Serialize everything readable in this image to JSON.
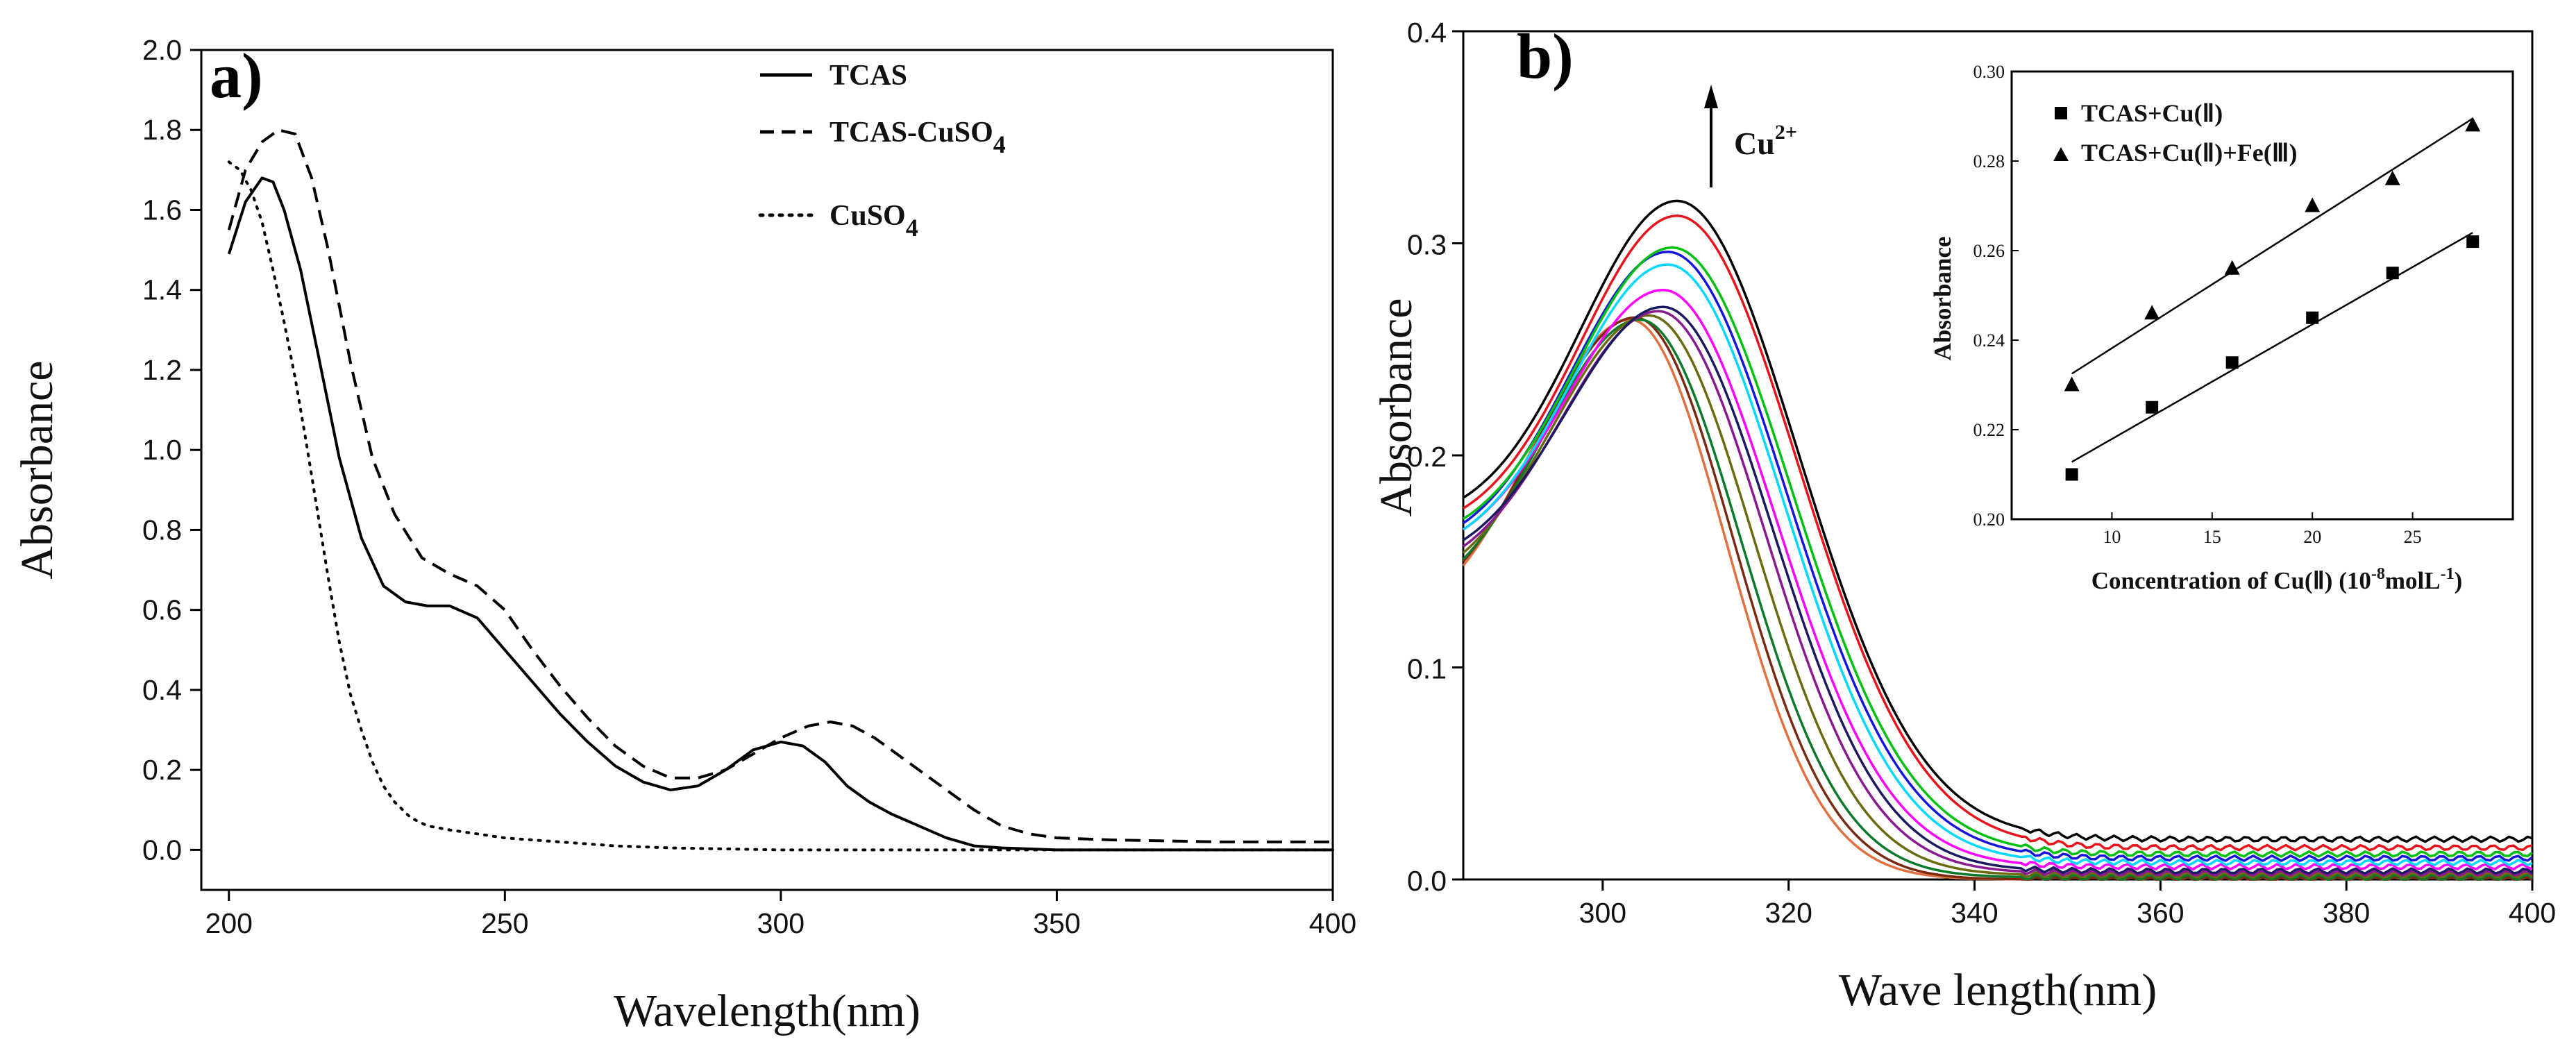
{
  "chart_data": [
    {
      "panel": "a)",
      "type": "line",
      "title": "",
      "xlabel": "Wavelength(nm)",
      "ylabel": "Absorbance",
      "xlim": [
        195,
        400
      ],
      "ylim": [
        -0.1,
        2.0
      ],
      "xticks": [
        200,
        250,
        300,
        350,
        400
      ],
      "yticks": [
        0.0,
        0.2,
        0.4,
        0.6,
        0.8,
        1.0,
        1.2,
        1.4,
        1.6,
        1.8,
        2.0
      ],
      "ytick_labels": [
        "0.0",
        "0.2",
        "0.4",
        "0.6",
        "0.8",
        "1.0",
        "1.2",
        "1.4",
        "1.6",
        "1.8",
        "2.0"
      ],
      "legend": [
        {
          "label": "TCAS",
          "subscript": ""
        },
        {
          "label": "TCAS-CuSO",
          "subscript": "4"
        },
        {
          "label": "CuSO",
          "subscript": "4"
        }
      ],
      "series": [
        {
          "name": "TCAS",
          "style": "solid",
          "color": "#000000",
          "x": [
            200,
            203,
            206,
            208,
            210,
            213,
            216,
            220,
            224,
            228,
            232,
            236,
            240,
            245,
            250,
            255,
            260,
            265,
            270,
            275,
            280,
            285,
            290,
            295,
            300,
            304,
            308,
            312,
            316,
            320,
            325,
            330,
            335,
            340,
            350,
            360,
            380,
            400
          ],
          "y": [
            1.49,
            1.62,
            1.68,
            1.67,
            1.6,
            1.45,
            1.25,
            0.98,
            0.78,
            0.66,
            0.62,
            0.61,
            0.61,
            0.58,
            0.5,
            0.42,
            0.34,
            0.27,
            0.21,
            0.17,
            0.15,
            0.16,
            0.2,
            0.25,
            0.27,
            0.26,
            0.22,
            0.16,
            0.12,
            0.09,
            0.06,
            0.03,
            0.01,
            0.005,
            0.0,
            0.0,
            0.0,
            0.0
          ]
        },
        {
          "name": "TCAS-CuSO4",
          "style": "dashed",
          "color": "#000000",
          "x": [
            200,
            203,
            206,
            209,
            212,
            215,
            218,
            222,
            226,
            230,
            235,
            240,
            245,
            250,
            255,
            260,
            265,
            270,
            275,
            280,
            285,
            290,
            295,
            300,
            305,
            309,
            313,
            317,
            320,
            325,
            330,
            335,
            340,
            345,
            350,
            360,
            380,
            400
          ],
          "y": [
            1.55,
            1.7,
            1.77,
            1.8,
            1.79,
            1.68,
            1.5,
            1.22,
            0.98,
            0.84,
            0.73,
            0.69,
            0.66,
            0.6,
            0.5,
            0.41,
            0.33,
            0.26,
            0.21,
            0.18,
            0.18,
            0.2,
            0.24,
            0.28,
            0.31,
            0.32,
            0.31,
            0.28,
            0.25,
            0.2,
            0.15,
            0.1,
            0.06,
            0.04,
            0.03,
            0.025,
            0.02,
            0.02
          ]
        },
        {
          "name": "CuSO4",
          "style": "dotted",
          "color": "#000000",
          "x": [
            200,
            202,
            204,
            206,
            208,
            210,
            212,
            214,
            216,
            218,
            220,
            222,
            224,
            226,
            228,
            230,
            233,
            236,
            240,
            245,
            250,
            260,
            270,
            280,
            300,
            320,
            350,
            400
          ],
          "y": [
            1.72,
            1.7,
            1.65,
            1.57,
            1.45,
            1.32,
            1.18,
            1.02,
            0.85,
            0.68,
            0.52,
            0.39,
            0.3,
            0.22,
            0.16,
            0.12,
            0.08,
            0.06,
            0.05,
            0.04,
            0.03,
            0.02,
            0.01,
            0.005,
            0.0,
            0.0,
            0.0,
            0.0
          ]
        }
      ]
    },
    {
      "panel": "b)",
      "type": "line",
      "title": "",
      "xlabel": "Wave length(nm)",
      "ylabel": "Absorbance",
      "xlim": [
        285,
        400
      ],
      "ylim": [
        0.0,
        0.4
      ],
      "xticks": [
        300,
        320,
        340,
        360,
        380,
        400
      ],
      "yticks": [
        0.0,
        0.1,
        0.2,
        0.3,
        0.4
      ],
      "ytick_labels": [
        "0.0",
        "0.1",
        "0.2",
        "0.3",
        "0.4"
      ],
      "annotation": {
        "text": "Cu",
        "superscript": "2+",
        "direction": "up"
      },
      "series": [
        {
          "name": "c1",
          "color": "#000000",
          "peak_x": 308,
          "peak_y": 0.32,
          "start_y": 0.18,
          "end_y": 0.019,
          "width_left": 16,
          "width_right": 21
        },
        {
          "name": "c2",
          "color": "#e8141c",
          "peak_x": 308,
          "peak_y": 0.313,
          "start_y": 0.175,
          "end_y": 0.015,
          "width_left": 16,
          "width_right": 21
        },
        {
          "name": "c3",
          "color": "#00c010",
          "peak_x": 307.5,
          "peak_y": 0.298,
          "start_y": 0.17,
          "end_y": 0.012,
          "width_left": 16,
          "width_right": 20.5
        },
        {
          "name": "c4",
          "color": "#1616d8",
          "peak_x": 307,
          "peak_y": 0.296,
          "start_y": 0.168,
          "end_y": 0.01,
          "width_left": 16,
          "width_right": 20.5
        },
        {
          "name": "c5",
          "color": "#00d8ff",
          "peak_x": 307,
          "peak_y": 0.29,
          "start_y": 0.165,
          "end_y": 0.008,
          "width_left": 16,
          "width_right": 20
        },
        {
          "name": "c6",
          "color": "#ff00ff",
          "peak_x": 306.5,
          "peak_y": 0.278,
          "start_y": 0.165,
          "end_y": 0.006,
          "width_left": 16,
          "width_right": 19.5
        },
        {
          "name": "c7",
          "color": "#1a1a60",
          "peak_x": 306.5,
          "peak_y": 0.27,
          "start_y": 0.16,
          "end_y": 0.004,
          "width_left": 16,
          "width_right": 19
        },
        {
          "name": "c8",
          "color": "#8a1890",
          "peak_x": 306,
          "peak_y": 0.268,
          "start_y": 0.157,
          "end_y": 0.003,
          "width_left": 16,
          "width_right": 18.5
        },
        {
          "name": "c9",
          "color": "#6a6a10",
          "peak_x": 305,
          "peak_y": 0.266,
          "start_y": 0.154,
          "end_y": 0.002,
          "width_left": 16,
          "width_right": 18
        },
        {
          "name": "c10",
          "color": "#0a7a2a",
          "peak_x": 304,
          "peak_y": 0.264,
          "start_y": 0.151,
          "end_y": 0.001,
          "width_left": 16,
          "width_right": 17.5
        },
        {
          "name": "c11",
          "color": "#7a2a10",
          "peak_x": 303.5,
          "peak_y": 0.265,
          "start_y": 0.15,
          "end_y": 0.0,
          "width_left": 16,
          "width_right": 17
        },
        {
          "name": "c12",
          "color": "#e07040",
          "peak_x": 303,
          "peak_y": 0.264,
          "start_y": 0.148,
          "end_y": 0.0,
          "width_left": 16,
          "width_right": 16.5
        }
      ],
      "inset": {
        "type": "scatter",
        "xlabel_main": "Concentration of Cu(Ⅱ) (10",
        "xlabel_sup": "-8",
        "xlabel_mid": "molL",
        "xlabel_sup2": "-1",
        "xlabel_end": ")",
        "ylabel": "Absorbance",
        "xlim": [
          5,
          30
        ],
        "ylim": [
          0.2,
          0.3
        ],
        "xticks": [
          10,
          15,
          20,
          25
        ],
        "yticks": [
          0.2,
          0.22,
          0.24,
          0.26,
          0.28,
          0.3
        ],
        "ytick_labels": [
          "0.20",
          "0.22",
          "0.24",
          "0.26",
          "0.28",
          "0.30"
        ],
        "series": [
          {
            "name": "TCAS+Cu(Ⅱ)",
            "marker": "square",
            "x": [
              8,
              12,
              16,
              20,
              24,
              28
            ],
            "y": [
              0.21,
              0.225,
              0.235,
              0.245,
              0.255,
              0.262
            ],
            "fit": [
              0.2128,
              0.264
            ]
          },
          {
            "name": "TCAS+Cu(Ⅱ)+Fe(Ⅲ)",
            "marker": "triangle",
            "x": [
              8,
              12,
              16,
              20,
              24,
              28
            ],
            "y": [
              0.23,
              0.246,
              0.256,
              0.27,
              0.276,
              0.288
            ],
            "fit": [
              0.2325,
              0.2895
            ]
          }
        ]
      }
    }
  ]
}
